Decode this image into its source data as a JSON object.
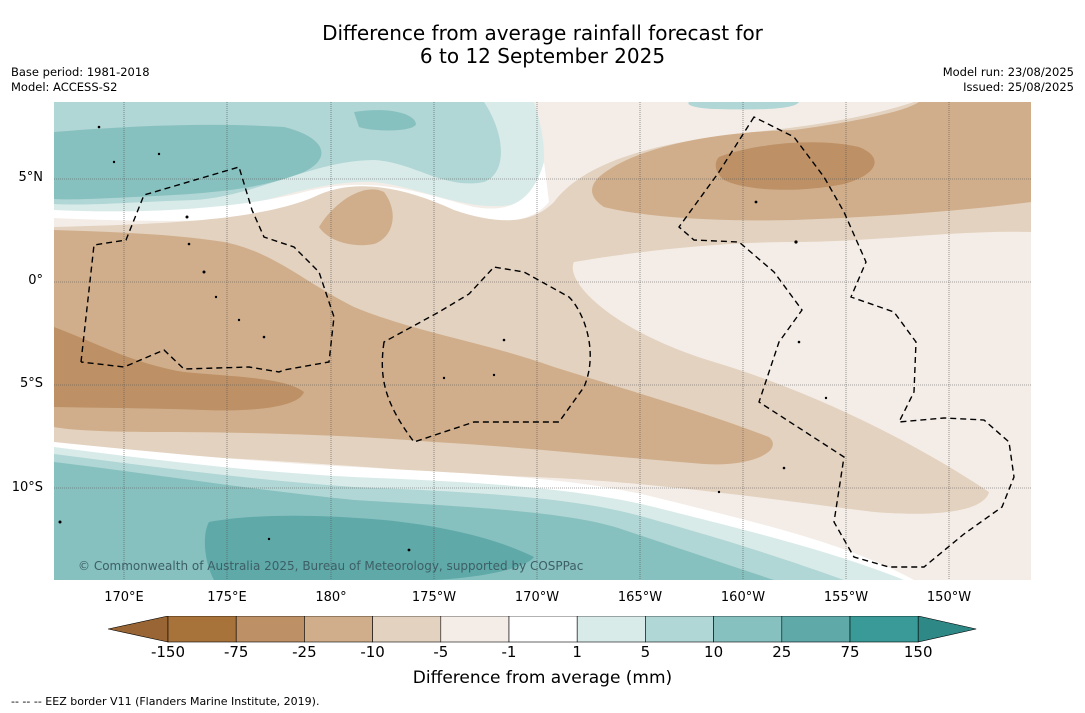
{
  "title_line1": "Difference from average rainfall forecast for",
  "title_line2": "6 to 12 September 2025",
  "meta_left": {
    "base_period": "Base period: 1981-2018",
    "model": "Model: ACCESS-S2"
  },
  "meta_right": {
    "model_run": "Model run: 23/08/2025",
    "issued": "Issued: 25/08/2025"
  },
  "map": {
    "latitude_labels": [
      "5°N",
      "0°",
      "5°S",
      "10°S"
    ],
    "longitude_labels": [
      "170°E",
      "175°E",
      "180°",
      "175°W",
      "170°W",
      "165°W",
      "160°W",
      "155°W",
      "150°W"
    ],
    "credit": "© Commonwealth of Australia 2025, Bureau of Meteorology, supported by COSPPac",
    "eez_line_style": "dashed black"
  },
  "legend": {
    "title": "Difference from average (mm)",
    "ticks": [
      "-150",
      "-75",
      "-25",
      "-10",
      "-5",
      "-1",
      "1",
      "5",
      "10",
      "25",
      "75",
      "150"
    ],
    "colors": [
      "#a8733a",
      "#bd9065",
      "#d0ae8b",
      "#e3d2bf",
      "#f4ede7",
      "#ffffff",
      "#d8ebe9",
      "#b0d6d5",
      "#86c0bf",
      "#5fa9a9",
      "#3a9a98"
    ],
    "under_color": "#9a6534",
    "over_color": "#2e8886"
  },
  "footer": "--  --  -- EEZ border V11 (Flanders Marine Institute, 2019)."
}
